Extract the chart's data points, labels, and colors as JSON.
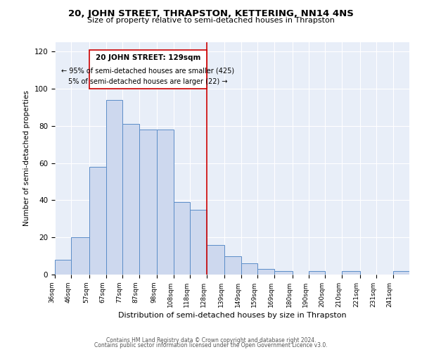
{
  "title": "20, JOHN STREET, THRAPSTON, KETTERING, NN14 4NS",
  "subtitle": "Size of property relative to semi-detached houses in Thrapston",
  "xlabel": "Distribution of semi-detached houses by size in Thrapston",
  "ylabel": "Number of semi-detached properties",
  "annotation_title": "20 JOHN STREET: 129sqm",
  "annotation_line2": "← 95% of semi-detached houses are smaller (425)",
  "annotation_line3": "5% of semi-detached houses are larger (22) →",
  "bin_edges": [
    36,
    46,
    57,
    67,
    77,
    87,
    98,
    108,
    118,
    128,
    139,
    149,
    159,
    169,
    180,
    190,
    200,
    210,
    221,
    231,
    241,
    251
  ],
  "bin_labels": [
    "36sqm",
    "46sqm",
    "57sqm",
    "67sqm",
    "77sqm",
    "87sqm",
    "98sqm",
    "108sqm",
    "118sqm",
    "128sqm",
    "139sqm",
    "149sqm",
    "159sqm",
    "169sqm",
    "180sqm",
    "190sqm",
    "200sqm",
    "210sqm",
    "221sqm",
    "231sqm",
    "241sqm"
  ],
  "bar_heights": [
    8,
    20,
    58,
    94,
    81,
    78,
    78,
    39,
    35,
    16,
    10,
    6,
    3,
    2,
    0,
    2,
    0,
    2,
    0,
    0,
    2
  ],
  "bar_facecolor": "#cdd8ee",
  "bar_edgecolor": "#5b8dc8",
  "vline_color": "#cc0000",
  "vline_x": 128,
  "ylim": [
    0,
    125
  ],
  "yticks": [
    0,
    20,
    40,
    60,
    80,
    100,
    120
  ],
  "background_color": "#e8eef8",
  "grid_color": "#ffffff",
  "footer1": "Contains HM Land Registry data © Crown copyright and database right 2024.",
  "footer2": "Contains public sector information licensed under the Open Government Licence v3.0."
}
